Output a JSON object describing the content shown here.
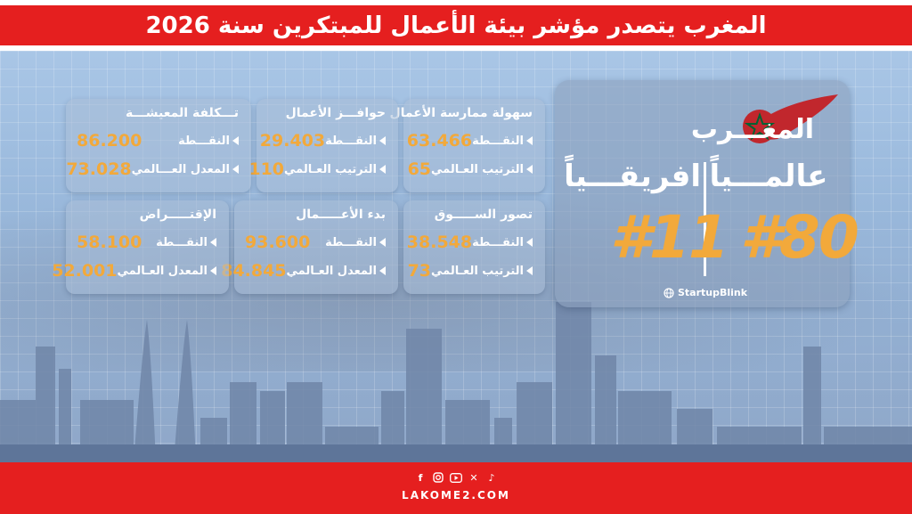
{
  "header": {
    "title": "المغرب يتصدر مؤشر بيئة الأعمال للمبتكرين سنة 2026"
  },
  "hero": {
    "country": "المغـــرب",
    "world_label": "عالمـــياً",
    "africa_label": "افريقـــياً",
    "world_rank": "#80",
    "africa_rank": "#11",
    "brand": "StartupBlink",
    "flag_colors": {
      "red": "#c1272d",
      "green": "#006233"
    }
  },
  "cards": [
    {
      "title": "سهولة ممارسة الأعمال",
      "r1_label": "النقـــطة",
      "r1_value": "63.466",
      "r2_label": "الترتيب العـالمي",
      "r2_value": "65"
    },
    {
      "title": "حوافـــز الأعمال",
      "r1_label": "النقـــطة",
      "r1_value": "29.403",
      "r2_label": "الترتيب العـالمي",
      "r2_value": "110"
    },
    {
      "title": "تـــكلفة المعيشـــة",
      "r1_label": "النقـــطة",
      "r1_value": "86.200",
      "r2_label": "المعدل العـــالمي",
      "r2_value": "73.028"
    },
    {
      "title": "تصور الســـــوق",
      "r1_label": "النقـــطة",
      "r1_value": "38.548",
      "r2_label": "الترتيب العـالمي",
      "r2_value": "73"
    },
    {
      "title": "بدء الأعـــــمال",
      "r1_label": "النقـــطة",
      "r1_value": "93.600",
      "r2_label": "المعدل العـالمي",
      "r2_value": "84.845"
    },
    {
      "title": "الإقتـــــراض",
      "r1_label": "النقـــطة",
      "r1_value": "58.100",
      "r2_label": "المعدل العـالمي",
      "r2_value": "52.001"
    }
  ],
  "footer": {
    "site": "LAKOME2.COM",
    "social_icons": [
      "facebook-icon",
      "instagram-icon",
      "youtube-icon",
      "x-icon",
      "tiktok-icon"
    ]
  },
  "colors": {
    "accent_red": "#e51f1f",
    "value_orange": "#f2a93b"
  }
}
